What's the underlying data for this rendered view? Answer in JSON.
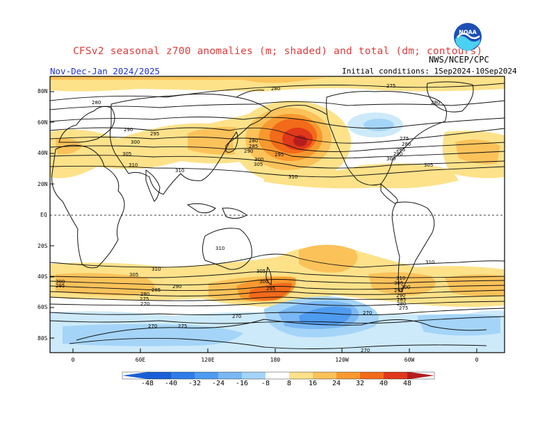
{
  "header": {
    "title": "CFSv2 seasonal z700 anomalies (m; shaded) and total (dm; contours)",
    "season": "Nov-Dec-Jan 2024/2025",
    "initial_conditions": "Initial conditions: 1Sep2024-10Sep2024",
    "organization": "NWS/NCEP/CPC",
    "logo_text": "NOAA"
  },
  "map": {
    "lat_labels": [
      "80N",
      "60N",
      "40N",
      "20N",
      "EQ",
      "20S",
      "40S",
      "60S",
      "80S"
    ],
    "lon_labels": [
      "0",
      "60E",
      "120E",
      "180",
      "120W",
      "60W",
      "0"
    ],
    "contour_labels": [
      "280",
      "275",
      "280",
      "280",
      "290",
      "295",
      "300",
      "305",
      "310",
      "310",
      "280",
      "285",
      "290",
      "300",
      "305",
      "310",
      "275",
      "280",
      "285",
      "290",
      "295",
      "300",
      "305",
      "310",
      "310",
      "310",
      "305",
      "300",
      "295",
      "290",
      "285",
      "280",
      "275",
      "270",
      "300",
      "295",
      "305",
      "310",
      "305",
      "300",
      "295",
      "290",
      "285",
      "280",
      "275",
      "270",
      "270",
      "270",
      "275",
      "270"
    ]
  },
  "colorbar": {
    "labels": [
      "-48",
      "-40",
      "-32",
      "-24",
      "-16",
      "-8",
      "8",
      "16",
      "24",
      "32",
      "40",
      "48"
    ],
    "colors": [
      "#1a5fd6",
      "#2f7de8",
      "#4f9bf0",
      "#7ab8f5",
      "#a4d4f8",
      "#cdeafa",
      "#ffffff",
      "#fde28a",
      "#fbc25a",
      "#f8992f",
      "#f26a1a",
      "#e0381a",
      "#b51d1d"
    ]
  }
}
